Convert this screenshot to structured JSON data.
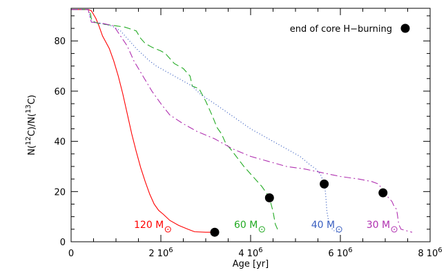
{
  "chart_data": {
    "type": "line",
    "xlabel": "Age [yr]",
    "ylabel_parts": [
      "N(",
      "12",
      "C)/N(",
      "13",
      "C)"
    ],
    "xlim": [
      0,
      8000000
    ],
    "ylim": [
      0,
      93
    ],
    "x_ticks": [
      {
        "value": 0,
        "mantissa": "0",
        "exponent": ""
      },
      {
        "value": 2000000,
        "mantissa": "2 10",
        "exponent": "6"
      },
      {
        "value": 4000000,
        "mantissa": "4 10",
        "exponent": "6"
      },
      {
        "value": 6000000,
        "mantissa": "6 10",
        "exponent": "6"
      },
      {
        "value": 8000000,
        "mantissa": "8 10",
        "exponent": "6"
      }
    ],
    "y_ticks": [
      0,
      20,
      40,
      60,
      80
    ],
    "legend": {
      "label": "end of core H−burning",
      "placement": "top-right",
      "marker": "filled-circle"
    },
    "series": [
      {
        "mass": "120 M",
        "color": "#ff0000",
        "dash": "solid",
        "label_at": [
          1400000,
          5.5
        ],
        "end_marker": [
          3200000,
          3.8
        ],
        "x": [
          0,
          380000,
          450000,
          550000,
          620000,
          700000,
          760000,
          850000,
          950000,
          1050000,
          1150000,
          1250000,
          1350000,
          1450000,
          1550000,
          1650000,
          1750000,
          1850000,
          1950000,
          2050000,
          2200000,
          2400000,
          2600000,
          2750000,
          3000000,
          3200000
        ],
        "y": [
          92.5,
          92.5,
          92,
          89,
          86,
          82,
          80,
          77,
          72,
          66,
          59,
          51,
          43,
          36,
          29.5,
          24,
          19,
          15,
          12.5,
          11,
          8.5,
          6.5,
          5,
          4,
          3.8,
          3.8
        ]
      },
      {
        "mass": "60 M",
        "color": "#22aa22",
        "dash": "10,5",
        "label_at": [
          3630000,
          5.5
        ],
        "end_marker": [
          4420000,
          17.5
        ],
        "x": [
          0,
          380000,
          430000,
          460000,
          600000,
          1000000,
          1200000,
          1450000,
          1550000,
          1650000,
          1800000,
          2000000,
          2100000,
          2200000,
          2300000,
          2500000,
          2650000,
          2700000,
          2850000,
          3000000,
          3150000,
          3250000,
          3350000,
          3450000,
          3550000,
          3700000,
          3850000,
          3950000,
          4050000,
          4150000,
          4250000,
          4350000,
          4420000,
          4500000,
          4550000,
          4600000,
          4650000
        ],
        "y": [
          92.5,
          92.5,
          91,
          88,
          87,
          86,
          85.5,
          84,
          81,
          79,
          77.5,
          76,
          75,
          73,
          71,
          69,
          66,
          62,
          61,
          56,
          50,
          45.5,
          43,
          39,
          37,
          33.5,
          30,
          28,
          26,
          24,
          22,
          19.5,
          17.5,
          12,
          7,
          5,
          4
        ]
      },
      {
        "mass": "40 M",
        "color": "#3a5fc0",
        "dash": "1,3",
        "label_at": [
          5350000,
          5.5
        ],
        "end_marker": [
          5640000,
          23
        ],
        "x": [
          0,
          380000,
          450000,
          650000,
          900000,
          1100000,
          1300000,
          1450000,
          1600000,
          1750000,
          1900000,
          2100000,
          2300000,
          2500000,
          2700000,
          2900000,
          3200000,
          3600000,
          4000000,
          4400000,
          4800000,
          5100000,
          5300000,
          5450000,
          5550000,
          5600000,
          5620000,
          5640000,
          5660000,
          5680000,
          5700000,
          5730000,
          5760000,
          5800000,
          5850000,
          5900000,
          5960000,
          6020000
        ],
        "y": [
          92.5,
          92.5,
          87.5,
          87,
          86,
          84,
          80,
          77,
          74.5,
          72,
          70,
          68,
          66,
          64,
          62,
          58.5,
          55,
          50,
          45,
          41,
          37,
          34,
          31,
          29,
          27,
          25,
          24,
          23,
          21,
          17,
          12,
          9,
          7,
          5.5,
          4.5,
          4,
          3.8,
          3.8
        ]
      },
      {
        "mass": "30 M",
        "color": "#b030b0",
        "dash": "10,4,2,4",
        "label_at": [
          6580000,
          5.5
        ],
        "end_marker": [
          6950000,
          19.5
        ],
        "x": [
          0,
          380000,
          450000,
          700000,
          950000,
          1100000,
          1250000,
          1400000,
          1600000,
          1800000,
          2000000,
          2200000,
          2500000,
          2800000,
          3200000,
          3600000,
          4000000,
          4400000,
          4800000,
          5200000,
          5600000,
          6000000,
          6400000,
          6700000,
          6850000,
          6950000,
          7050000,
          7150000,
          7200000,
          7250000,
          7270000,
          7300000,
          7350000,
          7450000,
          7550000,
          7600000
        ],
        "y": [
          92.5,
          92.5,
          87.5,
          87,
          86,
          82,
          78,
          72,
          66,
          60,
          55,
          50.5,
          47,
          44,
          41,
          37,
          34,
          32,
          30,
          29,
          27.5,
          26,
          25,
          24,
          23,
          20.5,
          18,
          16,
          14,
          13,
          11,
          7,
          5,
          4.5,
          4,
          3.8
        ]
      }
    ]
  }
}
